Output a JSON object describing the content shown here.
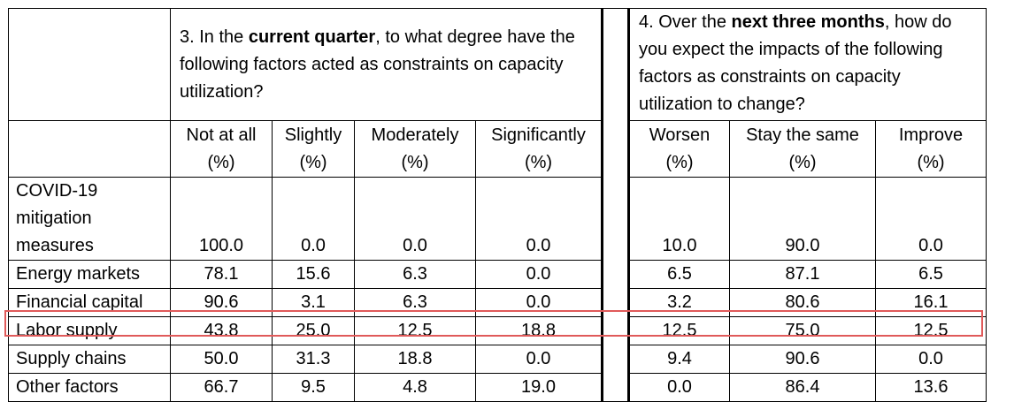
{
  "q3": {
    "pre": "3. In the ",
    "bold": "current quarter",
    "post": ", to what degree have the following factors acted as constraints on capacity utilization?"
  },
  "q4": {
    "pre": "4. Over the ",
    "bold": "next three months",
    "post": ", how do you expect the impacts of the following factors as constraints on capacity utilization to change?"
  },
  "columns": [
    {
      "top": "Not at all",
      "unit": "(%)"
    },
    {
      "top": "Slightly",
      "unit": "(%)"
    },
    {
      "top": "Moderately",
      "unit": "(%)"
    },
    {
      "top": "Significantly",
      "unit": "(%)"
    },
    {
      "top": "Worsen",
      "unit": "(%)"
    },
    {
      "top": "Stay the same",
      "unit": "(%)"
    },
    {
      "top": "Improve",
      "unit": "(%)"
    }
  ],
  "rows": [
    {
      "label": [
        "COVID-19",
        "mitigation",
        "measures"
      ],
      "values": [
        "100.0",
        "0.0",
        "0.0",
        "0.0",
        "10.0",
        "90.0",
        "0.0"
      ]
    },
    {
      "label": [
        "Energy markets"
      ],
      "values": [
        "78.1",
        "15.6",
        "6.3",
        "0.0",
        "6.5",
        "87.1",
        "6.5"
      ]
    },
    {
      "label": [
        "Financial capital"
      ],
      "values": [
        "90.6",
        "3.1",
        "6.3",
        "0.0",
        "3.2",
        "80.6",
        "16.1"
      ]
    },
    {
      "label": [
        "Labor supply"
      ],
      "values": [
        "43.8",
        "25.0",
        "12.5",
        "18.8",
        "12.5",
        "75.0",
        "12.5"
      ]
    },
    {
      "label": [
        "Supply chains"
      ],
      "values": [
        "50.0",
        "31.3",
        "18.8",
        "0.0",
        "9.4",
        "90.6",
        "0.0"
      ]
    },
    {
      "label": [
        "Other factors"
      ],
      "values": [
        "66.7",
        "9.5",
        "4.8",
        "19.0",
        "0.0",
        "86.4",
        "13.6"
      ]
    }
  ],
  "highlight": {
    "row": "Labor supply",
    "color": "#e05a5a"
  }
}
